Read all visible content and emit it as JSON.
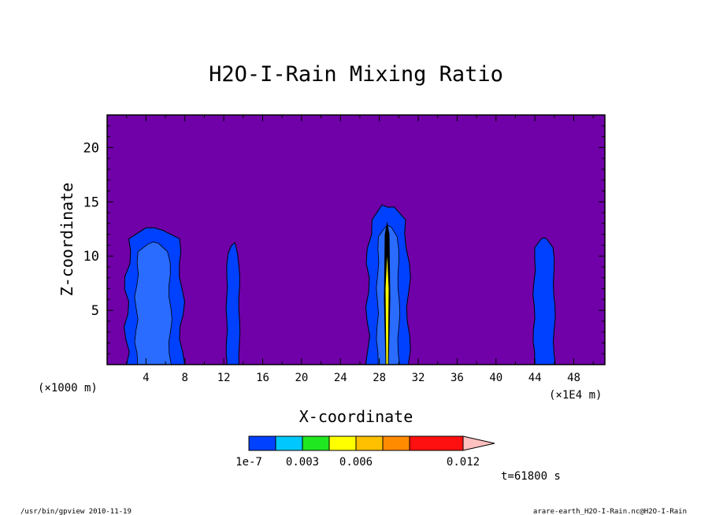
{
  "chart_data": {
    "type": "heatmap",
    "title": "H2O-I-Rain Mixing Ratio",
    "xlabel": "X-coordinate",
    "ylabel": "Z-coordinate",
    "x_unit_left": "(×1000 m)",
    "x_unit_right": "(×1E4 m)",
    "xlim": [
      0,
      51.2
    ],
    "ylim": [
      0,
      23
    ],
    "x_ticks": [
      4,
      8,
      12,
      16,
      20,
      24,
      28,
      32,
      36,
      40,
      44,
      48
    ],
    "y_ticks": [
      5,
      10,
      15,
      20
    ],
    "background_color": "#7000a8",
    "colorbar": {
      "colors": [
        "#0040ff",
        "#00c8ff",
        "#20e820",
        "#ffff00",
        "#ffc000",
        "#ff8c00",
        "#ff1010",
        "#ff8080",
        "#ffc0c0"
      ],
      "levels": [
        1e-07,
        0.0015,
        0.003,
        0.0045,
        0.006,
        0.0075,
        0.009,
        0.012
      ],
      "labels": [
        "1e-7",
        "0.003",
        "0.006",
        "0.012"
      ]
    },
    "cells": [
      {
        "name": "cell-x5",
        "x_range": [
          2.0,
          7.7
        ],
        "z_top": 12.6,
        "core_x": [
          3.0,
          6.5
        ],
        "core_top": 11.3
      },
      {
        "name": "cell-x13",
        "x_range": [
          12.3,
          13.6
        ],
        "z_top": 11.1
      },
      {
        "name": "cell-x29",
        "x_range": [
          26.8,
          31.0
        ],
        "z_top": 14.5,
        "core_x": [
          27.8,
          30.0
        ],
        "core_top": 12.8,
        "max_core_x": 28.8
      },
      {
        "name": "cell-x45",
        "x_range": [
          43.9,
          46.0
        ],
        "z_top": 11.7
      }
    ]
  },
  "time_label": "t=61800 s",
  "footer_left": "/usr/bin/gpview  2010-11-19",
  "footer_right": "arare-earth_H2O-I-Rain.nc@H2O-I-Rain"
}
